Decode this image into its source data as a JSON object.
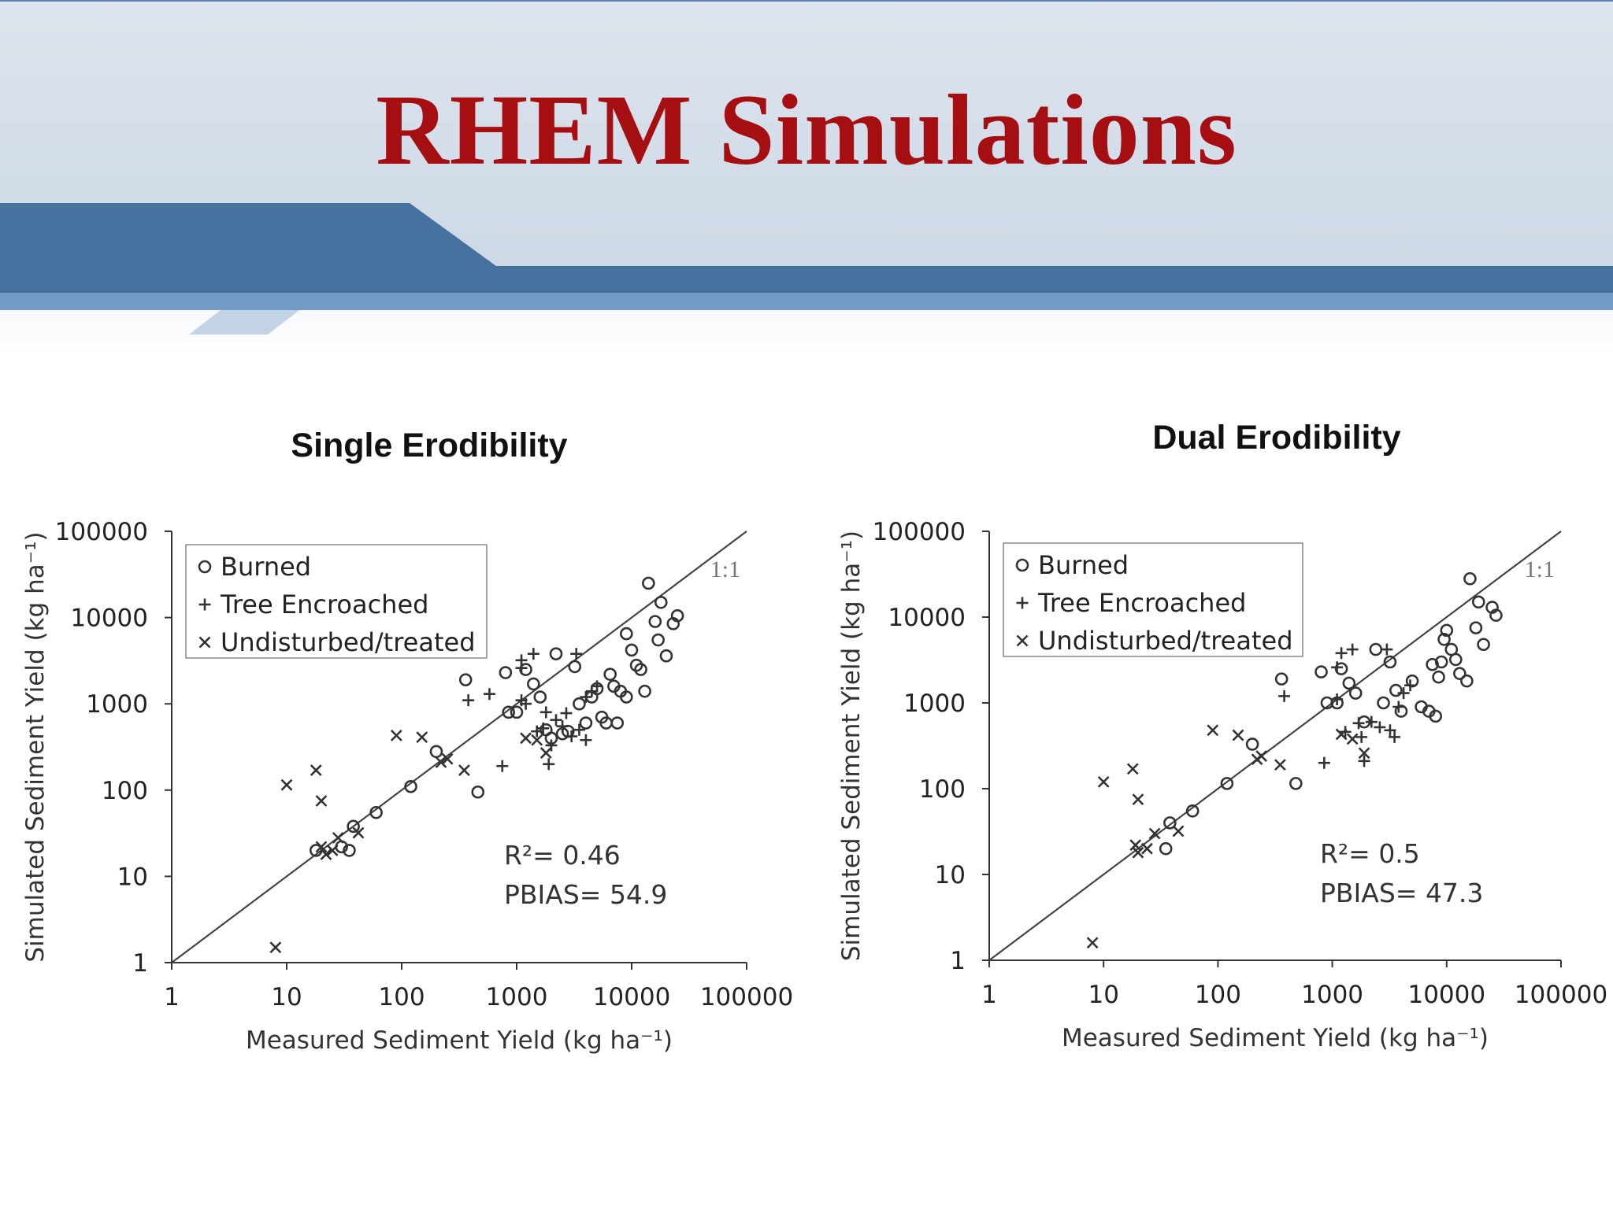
{
  "slide": {
    "title": "RHEM Simulations",
    "colors": {
      "title": "#a50f12",
      "header_bg": "#d9e1ec",
      "band_dark": "#46719f",
      "band_light": "#6f96c1"
    }
  },
  "chart_data": [
    {
      "type": "scatter",
      "title": "Single Erodibility",
      "xlabel": "Measured Sediment Yield (kg ha⁻¹)",
      "ylabel": "Simulated Sediment Yield (kg ha⁻¹)",
      "xscale": "log",
      "yscale": "log",
      "xlim": [
        1,
        100000
      ],
      "ylim": [
        1,
        100000
      ],
      "x_ticks": [
        "1",
        "10",
        "100",
        "1000",
        "10000",
        "100000"
      ],
      "y_ticks": [
        "1",
        "10",
        "100",
        "1000",
        "10000",
        "100000"
      ],
      "reference_line": {
        "label": "1:1"
      },
      "legend_position": "top-left",
      "stats": {
        "r2_label": "R²=",
        "r2": "0.46",
        "pbias_label": "PBIAS=",
        "pbias": "54.9"
      },
      "series": [
        {
          "name": "Burned",
          "marker": "o",
          "points": [
            [
              18,
              20
            ],
            [
              30,
              22
            ],
            [
              35,
              20
            ],
            [
              38,
              38
            ],
            [
              60,
              55
            ],
            [
              120,
              110
            ],
            [
              200,
              280
            ],
            [
              360,
              1900
            ],
            [
              460,
              95
            ],
            [
              800,
              2300
            ],
            [
              850,
              800
            ],
            [
              1000,
              800
            ],
            [
              1200,
              2500
            ],
            [
              1400,
              1700
            ],
            [
              1600,
              1200
            ],
            [
              1800,
              500
            ],
            [
              2000,
              400
            ],
            [
              2200,
              3800
            ],
            [
              2500,
              450
            ],
            [
              2800,
              480
            ],
            [
              3200,
              2700
            ],
            [
              3500,
              1000
            ],
            [
              4000,
              600
            ],
            [
              4500,
              1200
            ],
            [
              5000,
              1500
            ],
            [
              5500,
              700
            ],
            [
              6000,
              600
            ],
            [
              6500,
              2200
            ],
            [
              7000,
              1600
            ],
            [
              7500,
              600
            ],
            [
              8000,
              1400
            ],
            [
              9000,
              1200
            ],
            [
              9000,
              6500
            ],
            [
              10000,
              4200
            ],
            [
              11000,
              2800
            ],
            [
              12000,
              2500
            ],
            [
              13000,
              1400
            ],
            [
              14000,
              25000
            ],
            [
              16000,
              9000
            ],
            [
              17000,
              5500
            ],
            [
              18000,
              15000
            ],
            [
              20000,
              3600
            ],
            [
              23000,
              8500
            ],
            [
              25000,
              10500
            ]
          ]
        },
        {
          "name": "Tree Encroached",
          "marker": "+",
          "points": [
            [
              380,
              1100
            ],
            [
              580,
              1300
            ],
            [
              750,
              190
            ],
            [
              1100,
              1100
            ],
            [
              1100,
              2600
            ],
            [
              1100,
              3200
            ],
            [
              1200,
              1000
            ],
            [
              1400,
              3800
            ],
            [
              1500,
              480
            ],
            [
              1700,
              520
            ],
            [
              1800,
              800
            ],
            [
              1900,
              200
            ],
            [
              2000,
              330
            ],
            [
              2200,
              650
            ],
            [
              2500,
              550
            ],
            [
              2700,
              780
            ],
            [
              3000,
              420
            ],
            [
              3300,
              3800
            ],
            [
              3500,
              500
            ],
            [
              4000,
              380
            ],
            [
              4000,
              1200
            ],
            [
              4500,
              1400
            ],
            [
              5000,
              1600
            ]
          ]
        },
        {
          "name": "Undisturbed/treated",
          "marker": "x",
          "points": [
            [
              8,
              1.5
            ],
            [
              10,
              115
            ],
            [
              18,
              170
            ],
            [
              20,
              22
            ],
            [
              20,
              75
            ],
            [
              22,
              18
            ],
            [
              25,
              20
            ],
            [
              28,
              28
            ],
            [
              42,
              32
            ],
            [
              90,
              430
            ],
            [
              150,
              410
            ],
            [
              220,
              210
            ],
            [
              250,
              230
            ],
            [
              350,
              170
            ],
            [
              1200,
              400
            ],
            [
              1500,
              380
            ],
            [
              1800,
              270
            ]
          ]
        }
      ]
    },
    {
      "type": "scatter",
      "title": "Dual Erodibility",
      "xlabel": "Measured Sediment Yield (kg ha⁻¹)",
      "ylabel": "Simulated Sediment Yield (kg ha⁻¹)",
      "xscale": "log",
      "yscale": "log",
      "xlim": [
        1,
        100000
      ],
      "ylim": [
        1,
        100000
      ],
      "x_ticks": [
        "1",
        "10",
        "100",
        "1000",
        "10000",
        "100000"
      ],
      "y_ticks": [
        "1",
        "10",
        "100",
        "1000",
        "10000",
        "100000"
      ],
      "reference_line": {
        "label": "1:1"
      },
      "legend_position": "top-left",
      "stats": {
        "r2_label": "R²=",
        "r2": "0.5",
        "pbias_label": "PBIAS=",
        "pbias": "47.3"
      },
      "series": [
        {
          "name": "Burned",
          "marker": "o",
          "points": [
            [
              35,
              20
            ],
            [
              38,
              40
            ],
            [
              60,
              55
            ],
            [
              120,
              115
            ],
            [
              200,
              330
            ],
            [
              360,
              1900
            ],
            [
              480,
              115
            ],
            [
              800,
              2300
            ],
            [
              900,
              1000
            ],
            [
              1100,
              1000
            ],
            [
              1200,
              2500
            ],
            [
              1400,
              1700
            ],
            [
              1600,
              1300
            ],
            [
              1900,
              600
            ],
            [
              2400,
              4200
            ],
            [
              2800,
              1000
            ],
            [
              3200,
              3000
            ],
            [
              3600,
              1400
            ],
            [
              4000,
              800
            ],
            [
              5000,
              1800
            ],
            [
              6000,
              900
            ],
            [
              7000,
              800
            ],
            [
              7500,
              2800
            ],
            [
              8000,
              700
            ],
            [
              8500,
              2000
            ],
            [
              9000,
              3000
            ],
            [
              9500,
              5500
            ],
            [
              10000,
              7000
            ],
            [
              11000,
              4200
            ],
            [
              12000,
              3200
            ],
            [
              13000,
              2200
            ],
            [
              15000,
              1800
            ],
            [
              16000,
              28000
            ],
            [
              18000,
              7500
            ],
            [
              19000,
              15000
            ],
            [
              21000,
              4800
            ],
            [
              25000,
              13000
            ],
            [
              27000,
              10500
            ]
          ]
        },
        {
          "name": "Tree Encroached",
          "marker": "+",
          "points": [
            [
              380,
              1200
            ],
            [
              850,
              200
            ],
            [
              1100,
              1100
            ],
            [
              1100,
              2600
            ],
            [
              1200,
              3800
            ],
            [
              1300,
              460
            ],
            [
              1500,
              4200
            ],
            [
              1700,
              580
            ],
            [
              1800,
              400
            ],
            [
              1900,
              210
            ],
            [
              2200,
              600
            ],
            [
              2600,
              520
            ],
            [
              3000,
              4200
            ],
            [
              3200,
              480
            ],
            [
              3500,
              400
            ],
            [
              3800,
              900
            ],
            [
              4200,
              1300
            ],
            [
              4800,
              1600
            ]
          ]
        },
        {
          "name": "Undisturbed/treated",
          "marker": "x",
          "points": [
            [
              8,
              1.6
            ],
            [
              10,
              120
            ],
            [
              18,
              170
            ],
            [
              19,
              22
            ],
            [
              20,
              75
            ],
            [
              20,
              18
            ],
            [
              24,
              20
            ],
            [
              28,
              30
            ],
            [
              45,
              32
            ],
            [
              90,
              480
            ],
            [
              150,
              420
            ],
            [
              220,
              220
            ],
            [
              240,
              240
            ],
            [
              350,
              190
            ],
            [
              1200,
              430
            ],
            [
              1500,
              380
            ],
            [
              1900,
              260
            ]
          ]
        }
      ]
    }
  ]
}
